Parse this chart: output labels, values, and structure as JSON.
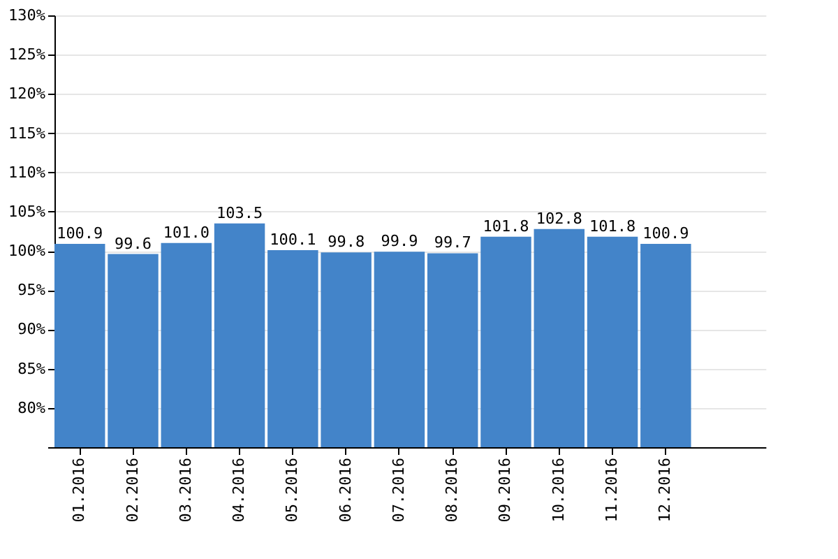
{
  "chart_data": {
    "type": "bar",
    "categories": [
      "01.2016",
      "02.2016",
      "03.2016",
      "04.2016",
      "05.2016",
      "06.2016",
      "07.2016",
      "08.2016",
      "09.2016",
      "10.2016",
      "11.2016",
      "12.2016"
    ],
    "values": [
      100.9,
      99.6,
      101.0,
      103.5,
      100.1,
      99.8,
      99.9,
      99.7,
      101.8,
      102.8,
      101.8,
      100.9
    ],
    "value_labels": [
      "100.9",
      "99.6",
      "101.0",
      "103.5",
      "100.1",
      "99.8",
      "99.9",
      "99.7",
      "101.8",
      "102.8",
      "101.8",
      "100.9"
    ],
    "color": "#4384c9",
    "ylim": [
      75,
      130
    ],
    "yticks": [
      {
        "value": 75,
        "label": null
      },
      {
        "value": 80,
        "label": "80%"
      },
      {
        "value": 85,
        "label": "85%"
      },
      {
        "value": 90,
        "label": "90%"
      },
      {
        "value": 95,
        "label": "95%"
      },
      {
        "value": 100,
        "label": "100%"
      },
      {
        "value": 105,
        "label": "105%"
      },
      {
        "value": 110,
        "label": "110%"
      },
      {
        "value": 115,
        "label": "115%"
      },
      {
        "value": 120,
        "label": "120%"
      },
      {
        "value": 125,
        "label": "125%"
      },
      {
        "value": 130,
        "label": "130%"
      }
    ],
    "grid": "y"
  }
}
